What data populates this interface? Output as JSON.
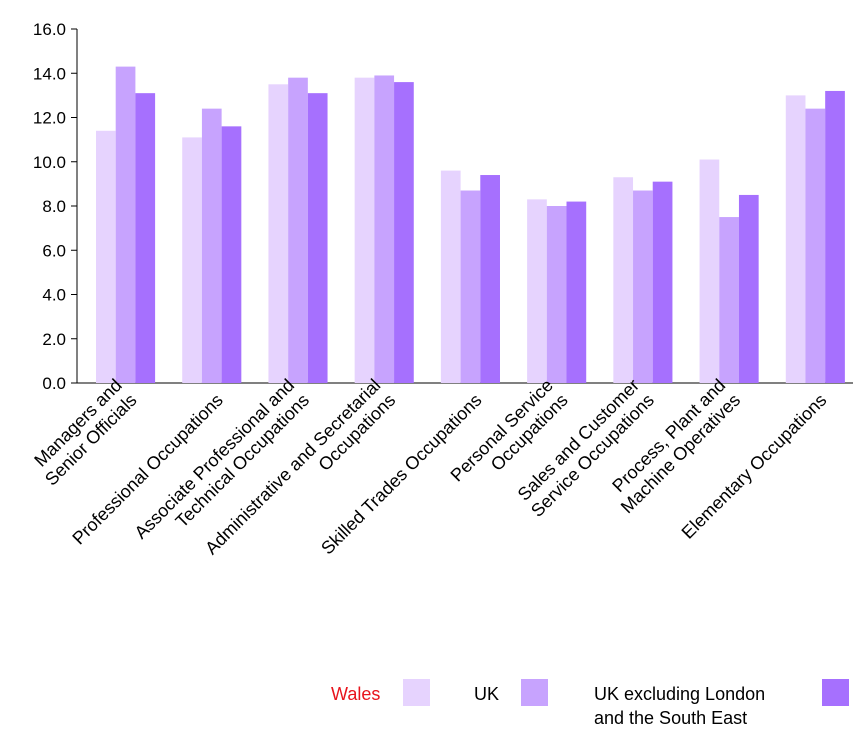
{
  "chart_data": {
    "type": "bar",
    "categories": [
      [
        "Managers and",
        "Senior Officials"
      ],
      [
        "Professional Occupations"
      ],
      [
        "Associate Professional and",
        "Technical Occupations"
      ],
      [
        "Administrative and Secretarial",
        "Occupations"
      ],
      [
        "Skilled Trades Occupations"
      ],
      [
        "Personal Service",
        "Occupations"
      ],
      [
        "Sales and Customer",
        "Service Occupations"
      ],
      [
        "Process, Plant and",
        "Machine Operatives"
      ],
      [
        "Elementary Occupations"
      ]
    ],
    "series": [
      {
        "name": "Wales",
        "color": "#e6d3fe",
        "values": [
          11.4,
          11.1,
          13.5,
          13.8,
          9.6,
          8.3,
          9.3,
          10.1,
          13.0
        ]
      },
      {
        "name": "UK",
        "color": "#c7a3fe",
        "values": [
          14.3,
          12.4,
          13.8,
          13.9,
          8.7,
          8.0,
          8.7,
          7.5,
          12.4
        ]
      },
      {
        "name": "UK excluding London and the South East",
        "color": "#a670fe",
        "values": [
          13.1,
          11.6,
          13.1,
          13.6,
          9.4,
          8.2,
          9.1,
          8.5,
          13.2
        ]
      }
    ],
    "yticks": [
      "0.0",
      "2.0",
      "4.0",
      "6.0",
      "8.0",
      "10.0",
      "12.0",
      "14.0",
      "16.0"
    ],
    "ylim": [
      0,
      16
    ],
    "grid": false,
    "legend": "bottom"
  },
  "legend": {
    "wales_label": "Wales",
    "wales_color": "#e8141c",
    "uk_label": "UK",
    "uk_ex_line1": "UK excluding London",
    "uk_ex_line2": "and the South East"
  }
}
